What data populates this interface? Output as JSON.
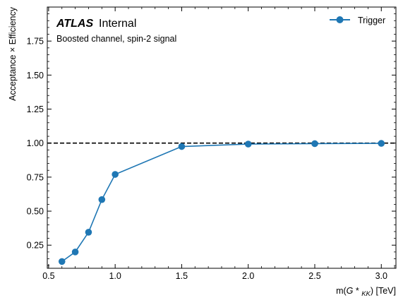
{
  "chart_data": {
    "type": "line",
    "xlabel_prefix": "m(",
    "xlabel_symbol": "G",
    "xlabel_star": " * ",
    "xlabel_sub": "KK",
    "xlabel_suffix": ") [TeV]",
    "ylabel": "Acceptance × Efficiency",
    "xlim": [
      0.49,
      3.11
    ],
    "ylim": [
      0.08,
      2.0
    ],
    "x_ticks": [
      0.5,
      1.0,
      1.5,
      2.0,
      2.5,
      3.0
    ],
    "x_tick_labels": [
      "0.5",
      "1.0",
      "1.5",
      "2.0",
      "2.5",
      "3.0"
    ],
    "y_ticks": [
      0.25,
      0.5,
      0.75,
      1.0,
      1.25,
      1.5,
      1.75
    ],
    "y_tick_labels": [
      "0.25",
      "0.50",
      "0.75",
      "1.00",
      "1.25",
      "1.50",
      "1.75"
    ],
    "reference_line": {
      "y": 1.0,
      "style": "dashed",
      "color": "#000000"
    },
    "experiment_label": "ATLAS",
    "status_label": "Internal",
    "subtitle": "Boosted channel, spin-2 signal",
    "legend_position": "top-right",
    "grid": false,
    "series": [
      {
        "name": "Trigger",
        "color": "#1f77b4",
        "x": [
          0.6,
          0.7,
          0.8,
          0.9,
          1.0,
          1.5,
          2.0,
          2.5,
          3.0
        ],
        "y": [
          0.13,
          0.2,
          0.345,
          0.585,
          0.77,
          0.975,
          0.993,
          0.996,
          0.998
        ]
      }
    ]
  }
}
